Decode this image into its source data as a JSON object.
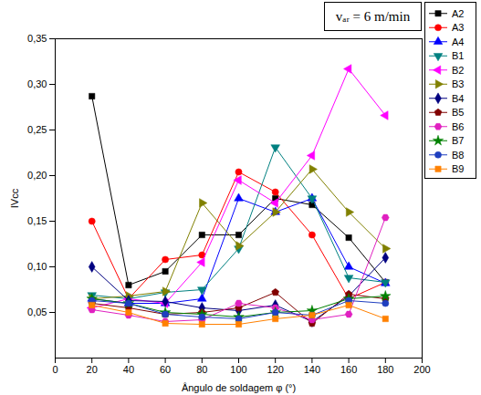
{
  "chart_data": {
    "type": "line",
    "annotation": "vₐᵣ = 6 m/min",
    "xlabel": "Ângulo de soldagem φ (°)",
    "ylabel": "IVcc",
    "x": [
      20,
      40,
      60,
      80,
      100,
      120,
      140,
      160,
      180
    ],
    "xlim": [
      0,
      200
    ],
    "xticks": [
      0,
      20,
      40,
      60,
      80,
      100,
      120,
      140,
      160,
      180,
      200
    ],
    "ylim": [
      0,
      0.35
    ],
    "yticks": [
      {
        "value": 0.05,
        "label": "0,05"
      },
      {
        "value": 0.1,
        "label": "0,10"
      },
      {
        "value": 0.15,
        "label": "0,15"
      },
      {
        "value": 0.2,
        "label": "0,20"
      },
      {
        "value": 0.25,
        "label": "0,25"
      },
      {
        "value": 0.3,
        "label": "0,30"
      },
      {
        "value": 0.35,
        "label": "0,35"
      }
    ],
    "legend": "right",
    "grid": false,
    "series": [
      {
        "name": "A2",
        "color": "#000000",
        "marker": "square",
        "values": [
          0.287,
          0.08,
          0.095,
          0.135,
          0.135,
          0.175,
          0.168,
          0.132,
          0.083
        ]
      },
      {
        "name": "A3",
        "color": "#ff0000",
        "marker": "circle",
        "values": [
          0.15,
          0.065,
          0.108,
          0.113,
          0.204,
          0.182,
          0.135,
          0.065,
          0.083
        ]
      },
      {
        "name": "A4",
        "color": "#0000ff",
        "marker": "triangle-up",
        "values": [
          0.065,
          0.06,
          0.06,
          0.065,
          0.175,
          0.16,
          0.175,
          0.1,
          0.082
        ]
      },
      {
        "name": "B1",
        "color": "#008080",
        "marker": "triangle-down",
        "values": [
          0.069,
          0.065,
          0.072,
          0.075,
          0.12,
          0.231,
          0.175,
          0.088,
          0.083
        ]
      },
      {
        "name": "B2",
        "color": "#ff00ff",
        "marker": "triangle-left",
        "values": [
          0.055,
          0.065,
          0.06,
          0.105,
          0.195,
          0.17,
          0.222,
          0.317,
          0.266
        ]
      },
      {
        "name": "B3",
        "color": "#808000",
        "marker": "triangle-right",
        "values": [
          0.065,
          0.068,
          0.073,
          0.17,
          0.123,
          0.16,
          0.207,
          0.16,
          0.12
        ]
      },
      {
        "name": "B4",
        "color": "#000080",
        "marker": "diamond",
        "values": [
          0.1,
          0.063,
          0.062,
          0.055,
          0.052,
          0.058,
          0.04,
          0.068,
          0.11
        ]
      },
      {
        "name": "B5",
        "color": "#800000",
        "marker": "pentagon",
        "values": [
          0.06,
          0.055,
          0.048,
          0.05,
          0.055,
          0.072,
          0.038,
          0.07,
          0.065
        ]
      },
      {
        "name": "B6",
        "color": "#e020c0",
        "marker": "hexagon",
        "values": [
          0.053,
          0.047,
          0.04,
          0.042,
          0.06,
          0.055,
          0.042,
          0.048,
          0.154
        ]
      },
      {
        "name": "B7",
        "color": "#008000",
        "marker": "star",
        "values": [
          0.065,
          0.06,
          0.05,
          0.048,
          0.045,
          0.05,
          0.052,
          0.065,
          0.068
        ]
      },
      {
        "name": "B8",
        "color": "#1f3fbf",
        "marker": "circle",
        "values": [
          0.063,
          0.06,
          0.048,
          0.045,
          0.043,
          0.05,
          0.047,
          0.063,
          0.06
        ]
      },
      {
        "name": "B9",
        "color": "#ff8000",
        "marker": "square",
        "values": [
          0.058,
          0.05,
          0.038,
          0.037,
          0.037,
          0.043,
          0.047,
          0.058,
          0.043
        ]
      }
    ]
  }
}
